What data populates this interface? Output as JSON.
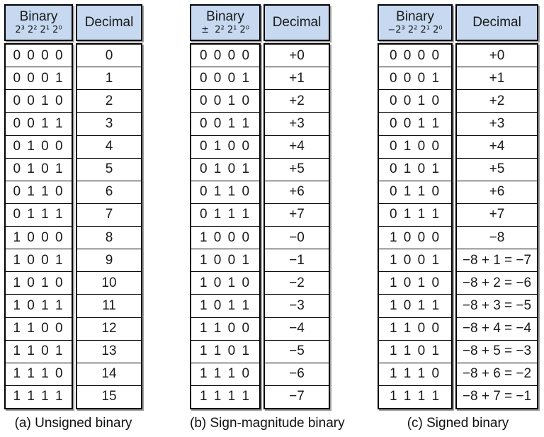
{
  "figure": {
    "background": "#ffffff"
  },
  "colors": {
    "header_bg": "#c6d9f0",
    "border": "#000000",
    "shadow": "#9f9f9f",
    "text": "#1a1a1a"
  },
  "tables": [
    {
      "caption": "(a) Unsigned binary",
      "binary_header_title": "Binary",
      "binary_header_weights": "2³ 2² 2¹ 2⁰",
      "decimal_header": "Decimal",
      "rows": [
        {
          "binary": "0 0 0 0",
          "decimal": "0"
        },
        {
          "binary": "0 0 0 1",
          "decimal": "1"
        },
        {
          "binary": "0 0 1 0",
          "decimal": "2"
        },
        {
          "binary": "0 0 1 1",
          "decimal": "3"
        },
        {
          "binary": "0 1 0 0",
          "decimal": "4"
        },
        {
          "binary": "0 1 0 1",
          "decimal": "5"
        },
        {
          "binary": "0 1 1 0",
          "decimal": "6"
        },
        {
          "binary": "0 1 1 1",
          "decimal": "7"
        },
        {
          "binary": "1 0 0 0",
          "decimal": "8"
        },
        {
          "binary": "1 0 0 1",
          "decimal": "9"
        },
        {
          "binary": "1 0 1 0",
          "decimal": "10"
        },
        {
          "binary": "1 0 1 1",
          "decimal": "11"
        },
        {
          "binary": "1 1 0 0",
          "decimal": "12"
        },
        {
          "binary": "1 1 0 1",
          "decimal": "13"
        },
        {
          "binary": "1 1 1 0",
          "decimal": "14"
        },
        {
          "binary": "1 1 1 1",
          "decimal": "15"
        }
      ]
    },
    {
      "caption": "(b) Sign-magnitude binary",
      "binary_header_title": "Binary",
      "binary_header_weights": "±  2² 2¹ 2⁰",
      "decimal_header": "Decimal",
      "rows": [
        {
          "binary": "0 0 0 0",
          "decimal": "+0"
        },
        {
          "binary": "0 0 0 1",
          "decimal": "+1"
        },
        {
          "binary": "0 0 1 0",
          "decimal": "+2"
        },
        {
          "binary": "0 0 1 1",
          "decimal": "+3"
        },
        {
          "binary": "0 1 0 0",
          "decimal": "+4"
        },
        {
          "binary": "0 1 0 1",
          "decimal": "+5"
        },
        {
          "binary": "0 1 1 0",
          "decimal": "+6"
        },
        {
          "binary": "0 1 1 1",
          "decimal": "+7"
        },
        {
          "binary": "1 0 0 0",
          "decimal": "−0"
        },
        {
          "binary": "1 0 0 1",
          "decimal": "−1"
        },
        {
          "binary": "1 0 1 0",
          "decimal": "−2"
        },
        {
          "binary": "1 0 1 1",
          "decimal": "−3"
        },
        {
          "binary": "1 1 0 0",
          "decimal": "−4"
        },
        {
          "binary": "1 1 0 1",
          "decimal": "−5"
        },
        {
          "binary": "1 1 1 0",
          "decimal": "−6"
        },
        {
          "binary": "1 1 1 1",
          "decimal": "−7"
        }
      ]
    },
    {
      "caption": "(c) Signed binary",
      "binary_header_title": "Binary",
      "binary_header_weights": "−2³ 2² 2¹ 2⁰",
      "decimal_header": "Decimal",
      "rows": [
        {
          "binary": "0 0 0 0",
          "decimal": "+0"
        },
        {
          "binary": "0 0 0 1",
          "decimal": "+1"
        },
        {
          "binary": "0 0 1 0",
          "decimal": "+2"
        },
        {
          "binary": "0 0 1 1",
          "decimal": "+3"
        },
        {
          "binary": "0 1 0 0",
          "decimal": "+4"
        },
        {
          "binary": "0 1 0 1",
          "decimal": "+5"
        },
        {
          "binary": "0 1 1 0",
          "decimal": "+6"
        },
        {
          "binary": "0 1 1 1",
          "decimal": "+7"
        },
        {
          "binary": "1 0 0 0",
          "decimal": "−8"
        },
        {
          "binary": "1 0 0 1",
          "decimal": "−8 + 1 = −7"
        },
        {
          "binary": "1 0 1 0",
          "decimal": "−8 + 2 = −6"
        },
        {
          "binary": "1 0 1 1",
          "decimal": "−8 + 3 = −5"
        },
        {
          "binary": "1 1 0 0",
          "decimal": "−8 + 4 = −4"
        },
        {
          "binary": "1 1 0 1",
          "decimal": "−8 + 5 = −3"
        },
        {
          "binary": "1 1 1 0",
          "decimal": "−8 + 6 = −2"
        },
        {
          "binary": "1 1 1 1",
          "decimal": "−8 + 7 = −1"
        }
      ]
    }
  ]
}
